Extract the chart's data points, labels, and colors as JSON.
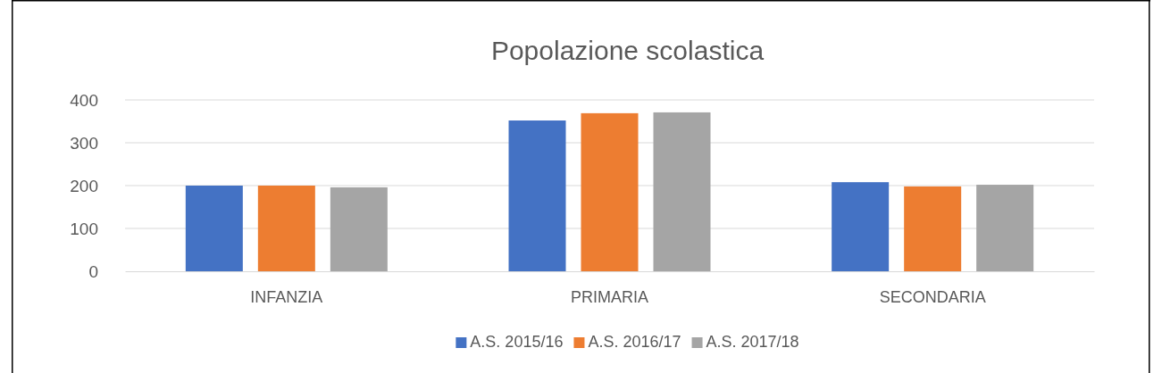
{
  "chart_data": {
    "type": "bar",
    "title": "Popolazione scolastica",
    "categories": [
      "INFANZIA",
      "PRIMARIA",
      "SECONDARIA"
    ],
    "series": [
      {
        "name": "A.S. 2015/16",
        "color": "#4472c4",
        "values": [
          200,
          352,
          208
        ]
      },
      {
        "name": "A.S. 2016/17",
        "color": "#ed7d31",
        "values": [
          200,
          369,
          198
        ]
      },
      {
        "name": "A.S. 2017/18",
        "color": "#a5a5a5",
        "values": [
          196,
          371,
          202
        ]
      }
    ],
    "ylim": [
      0,
      400
    ],
    "yticks": [
      0,
      100,
      200,
      300,
      400
    ],
    "grid": "y",
    "legend": "bottom"
  }
}
